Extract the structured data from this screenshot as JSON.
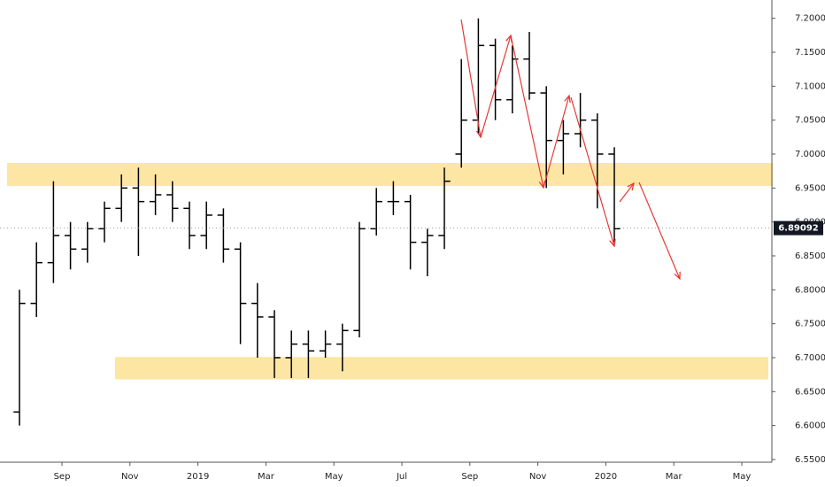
{
  "chart_data": {
    "type": "ohlc",
    "categories": [
      null,
      null,
      null,
      "Sep",
      null,
      null,
      null,
      "Nov",
      null,
      null,
      null,
      "2019",
      null,
      null,
      null,
      "Mar",
      null,
      null,
      null,
      "May",
      null,
      null,
      null,
      "Jul",
      null,
      null,
      null,
      "Sep",
      null,
      null,
      null,
      "Nov",
      null,
      null,
      null,
      "2020",
      null,
      null,
      null,
      "Mar",
      null,
      null,
      null,
      "May",
      null,
      null,
      null
    ],
    "series": [
      {
        "color": "#000000",
        "open": [
          6.62,
          6.78,
          6.84,
          6.88,
          6.86,
          6.89,
          6.92,
          6.95,
          6.93,
          6.94,
          6.92,
          6.88,
          6.91,
          6.86,
          6.78,
          6.76,
          6.7,
          6.72,
          6.71,
          6.72,
          6.74,
          6.89,
          6.93,
          6.93,
          6.87,
          6.88,
          7.0,
          7.05,
          7.16,
          7.08,
          7.14,
          7.09,
          7.02,
          7.03,
          7.05,
          7.0,
          null,
          null,
          null,
          null,
          null,
          null,
          null,
          null,
          null,
          null,
          null
        ],
        "high": [
          6.8,
          6.87,
          6.96,
          6.9,
          6.9,
          6.93,
          6.97,
          6.98,
          6.97,
          6.96,
          6.93,
          6.93,
          6.92,
          6.87,
          6.81,
          6.77,
          6.74,
          6.74,
          6.74,
          6.75,
          6.9,
          6.95,
          6.96,
          6.94,
          6.89,
          6.98,
          7.14,
          7.2,
          7.17,
          7.16,
          7.18,
          7.1,
          7.05,
          7.09,
          7.06,
          7.01,
          null,
          null,
          null,
          null,
          null,
          null,
          null,
          null,
          null,
          null,
          null
        ],
        "low": [
          6.6,
          6.76,
          6.81,
          6.83,
          6.84,
          6.87,
          6.9,
          6.85,
          6.91,
          6.9,
          6.86,
          6.86,
          6.84,
          6.72,
          6.7,
          6.67,
          6.67,
          6.67,
          6.7,
          6.68,
          6.73,
          6.88,
          6.91,
          6.83,
          6.82,
          6.86,
          6.98,
          7.03,
          7.05,
          7.06,
          7.08,
          6.95,
          6.97,
          7.01,
          6.92,
          6.87,
          null,
          null,
          null,
          null,
          null,
          null,
          null,
          null,
          null,
          null,
          null
        ],
        "close": [
          6.78,
          6.84,
          6.88,
          6.86,
          6.89,
          6.92,
          6.95,
          6.93,
          6.94,
          6.92,
          6.88,
          6.91,
          6.86,
          6.78,
          6.76,
          6.7,
          6.72,
          6.71,
          6.72,
          6.74,
          6.89,
          6.93,
          6.93,
          6.87,
          6.88,
          6.96,
          7.05,
          7.16,
          7.08,
          7.14,
          7.09,
          7.02,
          7.03,
          7.05,
          7.0,
          6.89,
          null,
          null,
          null,
          null,
          null,
          null,
          null,
          null,
          null,
          null,
          null
        ]
      }
    ],
    "ylim": [
      6.546,
      7.227
    ],
    "yticks": [
      {
        "value": 6.55,
        "label": "6.55000"
      },
      {
        "value": 6.6,
        "label": "6.60000"
      },
      {
        "value": 6.65,
        "label": "6.65000"
      },
      {
        "value": 6.7,
        "label": "6.70000"
      },
      {
        "value": 6.75,
        "label": "6.75000"
      },
      {
        "value": 6.8,
        "label": "6.80000"
      },
      {
        "value": 6.85,
        "label": "6.85000"
      },
      {
        "value": 6.9,
        "label": "6.90000"
      },
      {
        "value": 6.95,
        "label": "6.95000"
      },
      {
        "value": 7.0,
        "label": "7.00000"
      },
      {
        "value": 7.05,
        "label": "7.05000"
      },
      {
        "value": 7.1,
        "label": "7.10000"
      },
      {
        "value": 7.15,
        "label": "7.15000"
      },
      {
        "value": 7.2,
        "label": "7.20000"
      }
    ],
    "last_price": 6.89092,
    "zones": [
      {
        "low": 6.953,
        "high": 6.987,
        "color": "#fde6a3"
      },
      {
        "low": 6.668,
        "high": 6.701,
        "color": "#fde6a3"
      }
    ],
    "grid": false
  }
}
